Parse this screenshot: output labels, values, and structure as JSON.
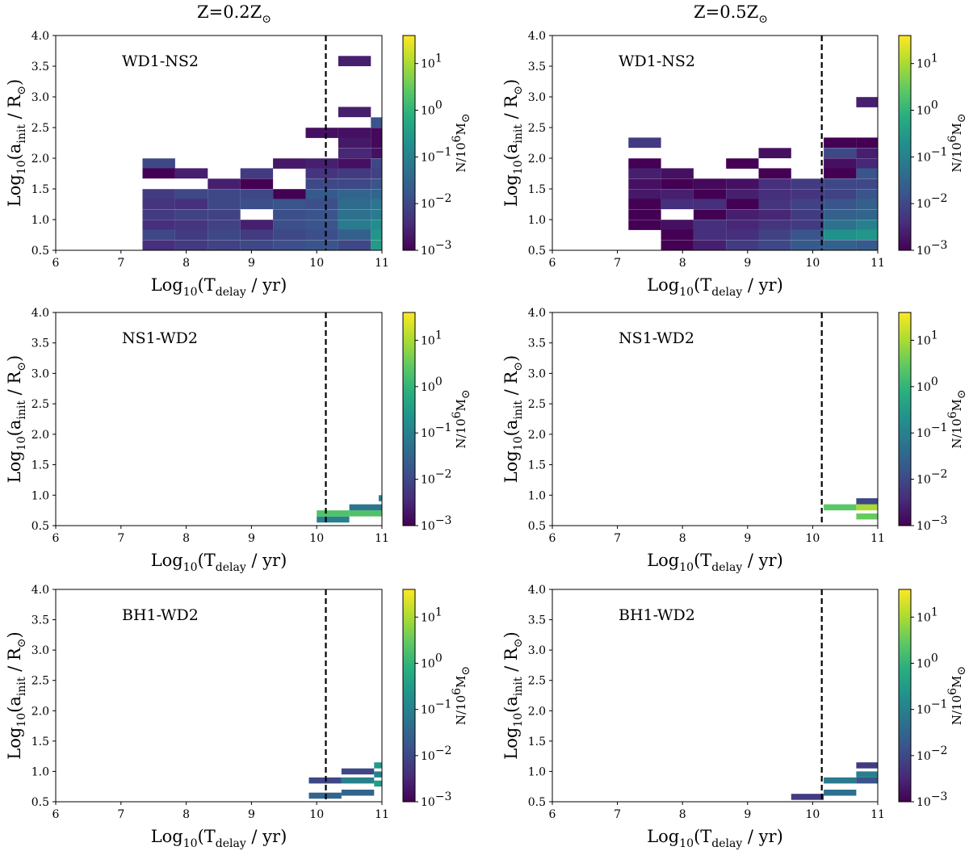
{
  "figure": {
    "column_titles": [
      {
        "base": "Z=0.2Z",
        "sub": "⊙"
      },
      {
        "base": "Z=0.5Z",
        "sub": "⊙"
      }
    ],
    "xlabel": {
      "pre": "Log",
      "pre_sub": "10",
      "main": "(T",
      "main_sub": "delay",
      "post": " / yr)"
    },
    "ylabel": {
      "pre": "Log",
      "pre_sub": "10",
      "main": "(a",
      "main_sub": "init",
      "post": " / R",
      "sun_sub": "⊙",
      "end": ")"
    },
    "colorbar": {
      "label": {
        "base": "N/10",
        "sup": "6",
        "unit": "M",
        "sub": "⊙"
      },
      "ticks": [
        {
          "base": "10",
          "exp": "1"
        },
        {
          "base": "10",
          "exp": "0"
        },
        {
          "base": "10",
          "exp": "−1"
        },
        {
          "base": "10",
          "exp": "−2"
        },
        {
          "base": "10",
          "exp": "−3"
        }
      ],
      "range_log": [
        -3,
        1.6
      ],
      "colormap": "viridis"
    },
    "x_ticks": [
      "6",
      "7",
      "8",
      "9",
      "10",
      "11"
    ],
    "y_ticks": [
      "0.5",
      "1.0",
      "1.5",
      "2.0",
      "2.5",
      "3.0",
      "3.5",
      "4.0"
    ],
    "hubble_line_x": 10.14
  },
  "chart_data": [
    {
      "type": "heatmap",
      "title": "WD1-NS2",
      "metallicity": "Z=0.2Z⊙",
      "xlim": [
        6,
        11
      ],
      "ylim": [
        0.5,
        4.0
      ],
      "x_bin": 0.5,
      "y_bin": 0.167,
      "cells": [
        [
          7.33,
          1.83,
          -2.0
        ],
        [
          7.33,
          1.67,
          -3.0
        ],
        [
          7.83,
          1.67,
          -2.6
        ],
        [
          8.33,
          1.5,
          -2.6
        ],
        [
          8.83,
          1.67,
          -2.2
        ],
        [
          8.83,
          1.5,
          -3.0
        ],
        [
          9.33,
          1.83,
          -2.7
        ],
        [
          9.83,
          1.83,
          -2.6
        ],
        [
          9.83,
          1.67,
          -2.3
        ],
        [
          9.33,
          1.33,
          -3.0
        ],
        [
          9.83,
          1.5,
          -2.0
        ],
        [
          9.83,
          2.33,
          -2.8
        ],
        [
          10.33,
          3.5,
          -2.6
        ],
        [
          10.33,
          2.67,
          -2.6
        ],
        [
          10.33,
          2.33,
          -2.8
        ],
        [
          10.33,
          2.17,
          -2.7
        ],
        [
          10.33,
          2.0,
          -2.5
        ],
        [
          10.33,
          1.83,
          -2.8
        ],
        [
          10.33,
          1.67,
          -2.2
        ],
        [
          10.33,
          1.5,
          -2.0
        ],
        [
          10.33,
          1.33,
          -1.5
        ],
        [
          10.33,
          1.17,
          -1.4
        ],
        [
          10.33,
          1.0,
          -1.3
        ],
        [
          10.33,
          0.83,
          -1.1
        ],
        [
          10.33,
          0.67,
          -1.6
        ],
        [
          10.33,
          0.5,
          -2.0
        ],
        [
          10.83,
          2.5,
          -1.8
        ],
        [
          10.83,
          2.33,
          -2.9
        ],
        [
          10.83,
          2.17,
          -2.9
        ],
        [
          10.83,
          2.0,
          -2.8
        ],
        [
          10.83,
          1.83,
          -2.0
        ],
        [
          10.83,
          1.67,
          -2.1
        ],
        [
          10.83,
          1.5,
          -1.8
        ],
        [
          10.83,
          1.33,
          -1.5
        ],
        [
          10.83,
          1.17,
          -1.2
        ],
        [
          10.83,
          1.0,
          -1.1
        ],
        [
          10.83,
          0.83,
          -0.8
        ],
        [
          10.83,
          0.67,
          -0.6
        ],
        [
          10.83,
          0.5,
          -0.5
        ],
        [
          7.33,
          1.33,
          -2.2
        ],
        [
          7.83,
          1.33,
          -2.0
        ],
        [
          8.33,
          1.33,
          -2.0
        ],
        [
          8.83,
          1.33,
          -2.0
        ],
        [
          9.83,
          1.33,
          -1.7
        ],
        [
          7.33,
          1.17,
          -2.3
        ],
        [
          7.83,
          1.17,
          -2.4
        ],
        [
          8.33,
          1.17,
          -2.0
        ],
        [
          8.83,
          1.17,
          -1.9
        ],
        [
          9.33,
          1.17,
          -1.8
        ],
        [
          9.83,
          1.17,
          -1.9
        ],
        [
          7.33,
          1.0,
          -2.2
        ],
        [
          7.83,
          1.0,
          -2.1
        ],
        [
          8.33,
          1.0,
          -2.1
        ],
        [
          9.33,
          1.0,
          -1.9
        ],
        [
          9.83,
          1.0,
          -1.8
        ],
        [
          7.33,
          0.83,
          -2.4
        ],
        [
          7.83,
          0.83,
          -2.3
        ],
        [
          8.33,
          0.83,
          -2.1
        ],
        [
          8.83,
          0.83,
          -2.6
        ],
        [
          9.33,
          0.83,
          -1.9
        ],
        [
          9.83,
          0.83,
          -1.8
        ],
        [
          7.33,
          0.67,
          -2.0
        ],
        [
          7.83,
          0.67,
          -2.2
        ],
        [
          8.33,
          0.67,
          -2.0
        ],
        [
          8.83,
          0.67,
          -2.2
        ],
        [
          9.33,
          0.67,
          -2.0
        ],
        [
          9.83,
          0.67,
          -1.9
        ],
        [
          7.33,
          0.5,
          -2.4
        ],
        [
          7.83,
          0.5,
          -2.2
        ],
        [
          8.33,
          0.5,
          -2.1
        ],
        [
          8.83,
          0.5,
          -2.0
        ],
        [
          9.33,
          0.5,
          -1.9
        ],
        [
          9.83,
          0.5,
          -1.8
        ]
      ]
    },
    {
      "type": "heatmap",
      "title": "WD1-NS2",
      "metallicity": "Z=0.5Z⊙",
      "xlim": [
        6,
        11
      ],
      "ylim": [
        0.5,
        4.0
      ],
      "x_bin": 0.5,
      "y_bin": 0.167,
      "cells": [
        [
          7.17,
          2.17,
          -2.2
        ],
        [
          7.17,
          1.83,
          -3.0
        ],
        [
          7.67,
          1.67,
          -2.8
        ],
        [
          7.17,
          1.67,
          -2.6
        ],
        [
          8.67,
          1.83,
          -3.0
        ],
        [
          9.17,
          2.0,
          -2.8
        ],
        [
          9.17,
          1.67,
          -3.0
        ],
        [
          7.17,
          1.5,
          -2.8
        ],
        [
          7.67,
          1.5,
          -3.0
        ],
        [
          8.17,
          1.5,
          -2.9
        ],
        [
          8.67,
          1.5,
          -2.8
        ],
        [
          9.17,
          1.5,
          -2.4
        ],
        [
          9.67,
          1.5,
          -2.2
        ],
        [
          7.17,
          1.33,
          -2.7
        ],
        [
          7.67,
          1.33,
          -2.6
        ],
        [
          8.17,
          1.33,
          -3.0
        ],
        [
          8.67,
          1.33,
          -2.6
        ],
        [
          9.17,
          1.33,
          -2.4
        ],
        [
          9.67,
          1.33,
          -2.3
        ],
        [
          7.17,
          1.17,
          -3.0
        ],
        [
          7.67,
          1.17,
          -2.4
        ],
        [
          8.17,
          1.17,
          -2.4
        ],
        [
          8.67,
          1.17,
          -3.0
        ],
        [
          9.17,
          1.17,
          -2.3
        ],
        [
          9.67,
          1.17,
          -2.1
        ],
        [
          7.17,
          1.0,
          -3.0
        ],
        [
          8.17,
          1.0,
          -3.0
        ],
        [
          8.67,
          1.0,
          -2.6
        ],
        [
          9.17,
          1.0,
          -2.5
        ],
        [
          9.67,
          1.0,
          -2.2
        ],
        [
          7.17,
          0.83,
          -3.0
        ],
        [
          7.67,
          0.83,
          -2.8
        ],
        [
          8.17,
          0.83,
          -2.4
        ],
        [
          8.67,
          0.83,
          -2.5
        ],
        [
          9.17,
          0.83,
          -2.3
        ],
        [
          9.67,
          0.83,
          -2.2
        ],
        [
          7.67,
          0.67,
          -3.0
        ],
        [
          8.17,
          0.67,
          -2.4
        ],
        [
          8.67,
          0.67,
          -2.4
        ],
        [
          9.17,
          0.67,
          -2.1
        ],
        [
          9.67,
          0.67,
          -1.8
        ],
        [
          7.67,
          0.5,
          -3.0
        ],
        [
          8.17,
          0.5,
          -2.6
        ],
        [
          8.67,
          0.5,
          -2.2
        ],
        [
          9.17,
          0.5,
          -2.0
        ],
        [
          9.67,
          0.5,
          -1.7
        ],
        [
          10.17,
          2.17,
          -3.0
        ],
        [
          10.17,
          2.0,
          -2.0
        ],
        [
          10.17,
          1.83,
          -2.8
        ],
        [
          10.17,
          1.67,
          -3.0
        ],
        [
          10.17,
          1.5,
          -2.0
        ],
        [
          10.17,
          1.33,
          -2.1
        ],
        [
          10.17,
          1.17,
          -1.8
        ],
        [
          10.17,
          1.0,
          -1.6
        ],
        [
          10.17,
          0.83,
          -1.3
        ],
        [
          10.17,
          0.67,
          -0.7
        ],
        [
          10.17,
          0.5,
          -1.6
        ],
        [
          10.67,
          2.17,
          -3.0
        ],
        [
          10.67,
          1.83,
          -2.5
        ],
        [
          10.67,
          1.67,
          -1.8
        ],
        [
          10.67,
          1.5,
          -2.0
        ],
        [
          10.67,
          1.33,
          -1.8
        ],
        [
          10.67,
          1.17,
          -1.6
        ],
        [
          10.67,
          1.0,
          -1.5
        ],
        [
          10.67,
          0.83,
          -1.0
        ],
        [
          10.67,
          0.67,
          -0.6
        ],
        [
          10.67,
          0.5,
          -1.7
        ],
        [
          10.67,
          2.83,
          -2.6
        ],
        [
          10.67,
          2.0,
          -2.6
        ]
      ]
    },
    {
      "type": "heatmap",
      "title": "NS1-WD2",
      "metallicity": "Z=0.2Z⊙",
      "xlim": [
        6,
        11
      ],
      "ylim": [
        0.5,
        4.0
      ],
      "x_bin": 0.5,
      "y_bin": 0.1,
      "cells": [
        [
          10.0,
          0.65,
          0.3
        ],
        [
          10.5,
          0.65,
          0.3
        ],
        [
          10.5,
          0.75,
          -1.2
        ],
        [
          10.0,
          0.55,
          -1.0
        ],
        [
          10.95,
          0.9,
          -1.0
        ]
      ]
    },
    {
      "type": "heatmap",
      "title": "NS1-WD2",
      "metallicity": "Z=0.5Z⊙",
      "xlim": [
        6,
        11
      ],
      "ylim": [
        0.5,
        4.0
      ],
      "x_bin": 0.5,
      "y_bin": 0.1,
      "cells": [
        [
          10.17,
          0.75,
          0.4
        ],
        [
          10.67,
          0.75,
          1.0
        ],
        [
          10.67,
          0.85,
          -2.0
        ],
        [
          10.67,
          0.6,
          0.5
        ]
      ]
    },
    {
      "type": "heatmap",
      "title": "BH1-WD2",
      "metallicity": "Z=0.2Z⊙",
      "xlim": [
        6,
        11
      ],
      "ylim": [
        0.5,
        4.0
      ],
      "x_bin": 0.5,
      "y_bin": 0.1,
      "cells": [
        [
          9.88,
          0.8,
          -2.0
        ],
        [
          9.88,
          0.55,
          -1.5
        ],
        [
          10.38,
          0.95,
          -2.0
        ],
        [
          10.38,
          0.8,
          -1.0
        ],
        [
          10.38,
          0.6,
          -1.5
        ],
        [
          10.88,
          1.05,
          -0.5
        ],
        [
          10.88,
          0.9,
          -1.0
        ],
        [
          10.88,
          0.75,
          -0.5
        ]
      ]
    },
    {
      "type": "heatmap",
      "title": "BH1-WD2",
      "metallicity": "Z=0.5Z⊙",
      "xlim": [
        6,
        11
      ],
      "ylim": [
        0.5,
        4.0
      ],
      "x_bin": 0.5,
      "y_bin": 0.1,
      "cells": [
        [
          9.67,
          0.53,
          -2.2
        ],
        [
          10.17,
          0.8,
          -1.1
        ],
        [
          10.17,
          0.6,
          -1.3
        ],
        [
          10.67,
          1.05,
          -2.2
        ],
        [
          10.67,
          0.8,
          -1.8
        ],
        [
          10.67,
          0.9,
          -1.0
        ]
      ]
    }
  ]
}
